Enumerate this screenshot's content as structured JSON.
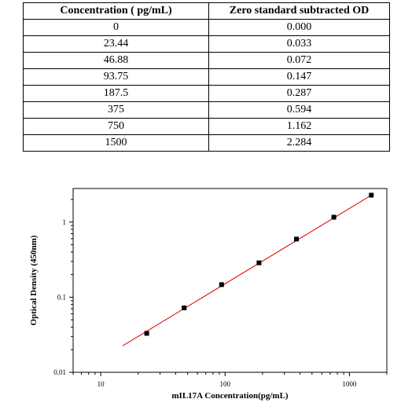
{
  "table": {
    "headers": [
      "Concentration ( pg/mL)",
      "Zero standard subtracted OD"
    ],
    "rows": [
      [
        "0",
        "0.000"
      ],
      [
        "23.44",
        "0.033"
      ],
      [
        "46.88",
        "0.072"
      ],
      [
        "93.75",
        "0.147"
      ],
      [
        "187.5",
        "0.287"
      ],
      [
        "375",
        "0.594"
      ],
      [
        "750",
        "1.162"
      ],
      [
        "1500",
        "2.284"
      ]
    ]
  },
  "chart_data": {
    "type": "scatter",
    "title": "",
    "xlabel": "mIL17A  Concentration(pg/mL)",
    "ylabel": "Optical Density (450nm)",
    "xscale": "log",
    "yscale": "log",
    "xlim": [
      6,
      2000
    ],
    "ylim": [
      0.01,
      2.8
    ],
    "xticks": [
      10,
      100,
      1000
    ],
    "xtick_labels": [
      "10",
      "100",
      "1000"
    ],
    "yticks": [
      0.01,
      0.1,
      1
    ],
    "ytick_labels": [
      "0.01",
      "0.1",
      "1"
    ],
    "grid": false,
    "series": [
      {
        "x": [
          23.44,
          46.88,
          93.75,
          187.5,
          375,
          750,
          1500
        ],
        "y": [
          0.033,
          0.072,
          0.147,
          0.287,
          0.594,
          1.162,
          2.284
        ],
        "color": "#000000"
      }
    ],
    "fit_line": {
      "x": [
        15,
        1520
      ],
      "y": [
        0.0225,
        2.31
      ],
      "color": "#e00000"
    }
  }
}
